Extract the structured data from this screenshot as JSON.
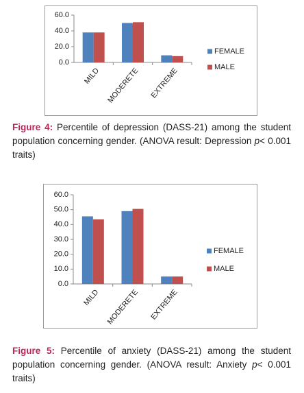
{
  "chart_data": [
    {
      "type": "bar",
      "categories": [
        "MILD",
        "MODERETE",
        "EXTREME"
      ],
      "series": [
        {
          "name": "FEMALE",
          "color": "#4f81bd",
          "values": [
            38,
            50,
            9
          ]
        },
        {
          "name": "MALE",
          "color": "#c0504d",
          "values": [
            38,
            51,
            8
          ]
        }
      ],
      "ylim": [
        0,
        60
      ],
      "yticks": [
        {
          "value": 0,
          "label": "0.0"
        },
        {
          "value": 20,
          "label": "20.0"
        },
        {
          "value": 40,
          "label": "40.0"
        },
        {
          "value": 60,
          "label": "60.0"
        }
      ],
      "grid": false,
      "legend": "right"
    },
    {
      "type": "bar",
      "categories": [
        "MILD",
        "MODERETE",
        "EXTREME"
      ],
      "series": [
        {
          "name": "FEMALE",
          "color": "#4f81bd",
          "values": [
            45.5,
            49,
            5
          ]
        },
        {
          "name": "MALE",
          "color": "#c0504d",
          "values": [
            43.5,
            50.5,
            5
          ]
        }
      ],
      "ylim": [
        0,
        60
      ],
      "yticks": [
        {
          "value": 0,
          "label": "0.0"
        },
        {
          "value": 10,
          "label": "10.0"
        },
        {
          "value": 20,
          "label": "20.0"
        },
        {
          "value": 30,
          "label": "30.0"
        },
        {
          "value": 40,
          "label": "40.0"
        },
        {
          "value": 50,
          "label": "50.0"
        },
        {
          "value": 60,
          "label": "60.0"
        }
      ],
      "grid": false,
      "legend": "right"
    }
  ],
  "captions": [
    {
      "label": "Figure 4:",
      "text": " Percentile of depression (DASS-21) among the student population concerning gender. (ANOVA result: Depression ",
      "italic": "p",
      "tail": "< 0.001 traits)"
    },
    {
      "label": "Figure 5:",
      "text": " Percentile of anxiety (DASS-21) among the student population concerning gender. (ANOVA result: Anxiety ",
      "italic": "p",
      "tail": "< 0.001 traits)"
    }
  ]
}
